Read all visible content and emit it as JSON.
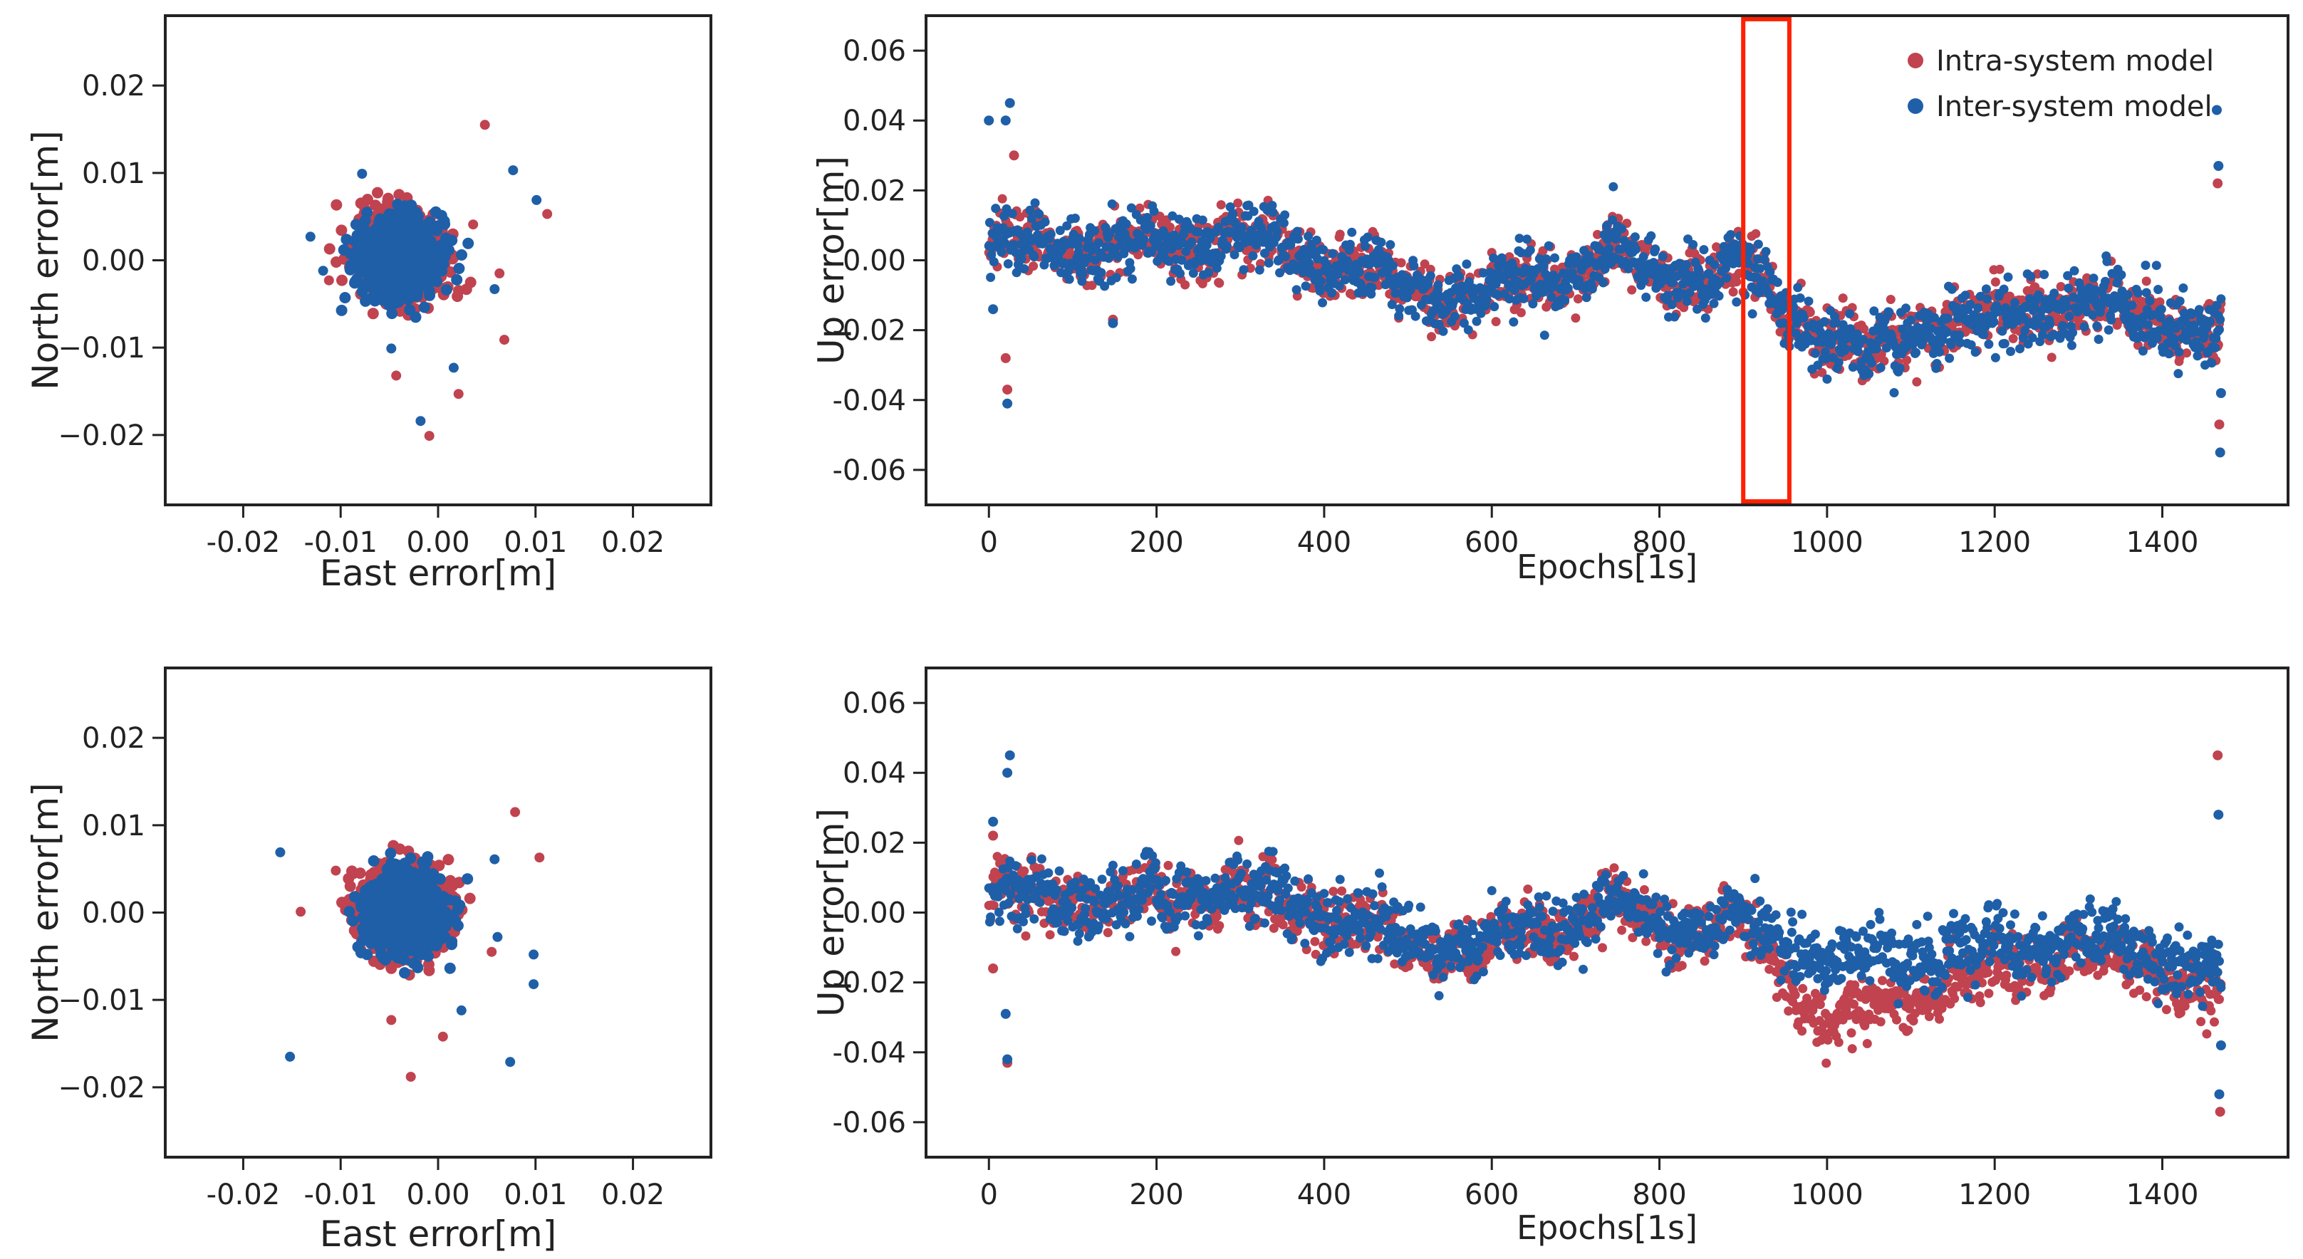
{
  "colors": {
    "intra": "#c0434f",
    "inter": "#1f5fa8",
    "highlight": "#ff2000",
    "axis": "#222222"
  },
  "legend": {
    "intra_label": "Intra-system model",
    "inter_label": "Inter-system model"
  },
  "chart_data": [
    {
      "id": "top-left",
      "type": "scatter",
      "title": "",
      "xlabel": "East error[m]",
      "ylabel": "North error[m]",
      "xlim": [
        -0.028,
        0.028
      ],
      "ylim": [
        -0.028,
        0.028
      ],
      "xticks": [
        -0.02,
        -0.01,
        0.0,
        0.01,
        0.02
      ],
      "xtick_labels": [
        "-0.02",
        "-0.01",
        "0.00",
        "0.01",
        "0.02"
      ],
      "yticks": [
        -0.02,
        -0.01,
        0.0,
        0.01,
        0.02
      ],
      "ytick_labels": [
        "−0.02",
        "−0.01",
        "0.00",
        "0.01",
        "0.02"
      ],
      "cluster": {
        "center": [
          -0.004,
          0.0005
        ],
        "spread": [
          0.0024,
          0.0026
        ],
        "count": 1400
      },
      "series": [
        {
          "name": "Intra-system model",
          "outliers": [
            [
              0.0048,
              0.0155
            ],
            [
              0.0112,
              0.0053
            ],
            [
              0.0068,
              -0.0091
            ],
            [
              0.0021,
              -0.0153
            ],
            [
              -0.0009,
              -0.0201
            ],
            [
              -0.0043,
              -0.0132
            ],
            [
              0.0063,
              -0.0015
            ],
            [
              -0.0112,
              -0.0023
            ],
            [
              0.0036,
              0.0041
            ]
          ]
        },
        {
          "name": "Inter-system model",
          "outliers": [
            [
              0.0077,
              0.0103
            ],
            [
              0.0101,
              0.0069
            ],
            [
              -0.0078,
              0.0099
            ],
            [
              -0.0131,
              0.0027
            ],
            [
              -0.0018,
              -0.0184
            ],
            [
              0.0016,
              -0.0123
            ],
            [
              -0.0048,
              -0.0101
            ],
            [
              0.0058,
              -0.0033
            ],
            [
              -0.0118,
              -0.0012
            ]
          ]
        }
      ]
    },
    {
      "id": "top-right",
      "type": "scatter",
      "title": "",
      "xlabel": "Epochs[1s]",
      "ylabel": "Up error[m]",
      "xlim": [
        -75,
        1550
      ],
      "ylim": [
        -0.07,
        0.07
      ],
      "xticks": [
        0,
        200,
        400,
        600,
        800,
        1000,
        1200,
        1400
      ],
      "xtick_labels": [
        "0",
        "200",
        "400",
        "600",
        "800",
        "1000",
        "1200",
        "1400"
      ],
      "yticks": [
        -0.06,
        -0.04,
        -0.02,
        0.0,
        0.02,
        0.04,
        0.06
      ],
      "ytick_labels": [
        "-0.06",
        "-0.04",
        "-0.02",
        "0.00",
        "0.02",
        "0.04",
        "0.06"
      ],
      "epochs": [
        0,
        1470
      ],
      "trend": [
        [
          0,
          0.005
        ],
        [
          100,
          0.004
        ],
        [
          200,
          0.004
        ],
        [
          300,
          0.006
        ],
        [
          400,
          0.0
        ],
        [
          500,
          -0.008
        ],
        [
          600,
          -0.01
        ],
        [
          700,
          -0.002
        ],
        [
          750,
          0.002
        ],
        [
          800,
          -0.005
        ],
        [
          900,
          -0.003
        ],
        [
          950,
          -0.013
        ],
        [
          1000,
          -0.022
        ],
        [
          1050,
          -0.028
        ],
        [
          1100,
          -0.02
        ],
        [
          1150,
          -0.018
        ],
        [
          1200,
          -0.017
        ],
        [
          1250,
          -0.014
        ],
        [
          1300,
          -0.012
        ],
        [
          1350,
          -0.015
        ],
        [
          1400,
          -0.016
        ],
        [
          1470,
          -0.022
        ]
      ],
      "series": [
        {
          "name": "Intra-system model",
          "offset": [
            [
              0,
              0.0
            ],
            [
              1470,
              0.0
            ]
          ],
          "noise": 0.0042
        },
        {
          "name": "Inter-system model",
          "offset": [
            [
              0,
              0.0
            ],
            [
              1470,
              0.0
            ]
          ],
          "noise": 0.0045
        }
      ],
      "spikes": [
        [
          0,
          0.04,
          "inter"
        ],
        [
          25,
          0.045,
          "inter"
        ],
        [
          20,
          0.04,
          "inter"
        ],
        [
          22,
          -0.041,
          "inter"
        ],
        [
          22,
          -0.037,
          "intra"
        ],
        [
          20,
          -0.028,
          "intra"
        ],
        [
          5,
          -0.014,
          "inter"
        ],
        [
          30,
          0.03,
          "intra"
        ],
        [
          1465,
          0.043,
          "inter"
        ],
        [
          1466,
          0.022,
          "intra"
        ],
        [
          1468,
          -0.047,
          "intra"
        ],
        [
          1469,
          -0.055,
          "inter"
        ],
        [
          1470,
          -0.038,
          "inter"
        ],
        [
          1467,
          0.027,
          "inter"
        ],
        [
          148,
          -0.017,
          "intra"
        ],
        [
          148,
          -0.018,
          "inter"
        ],
        [
          1400,
          -0.018,
          "intra"
        ]
      ],
      "highlight": {
        "x": [
          900,
          955
        ],
        "y": [
          -0.069,
          0.069
        ]
      },
      "legend_position": "top-right"
    },
    {
      "id": "bottom-left",
      "type": "scatter",
      "title": "",
      "xlabel": "East error[m]",
      "ylabel": "North error[m]",
      "xlim": [
        -0.028,
        0.028
      ],
      "ylim": [
        -0.028,
        0.028
      ],
      "xticks": [
        -0.02,
        -0.01,
        0.0,
        0.01,
        0.02
      ],
      "xtick_labels": [
        "-0.02",
        "-0.01",
        "0.00",
        "0.01",
        "0.02"
      ],
      "yticks": [
        -0.02,
        -0.01,
        0.0,
        0.01,
        0.02
      ],
      "ytick_labels": [
        "−0.02",
        "−0.01",
        "0.00",
        "0.01",
        "0.02"
      ],
      "cluster": {
        "center": [
          -0.0035,
          0.0
        ],
        "spread": [
          0.0024,
          0.0026
        ],
        "count": 1400
      },
      "series": [
        {
          "name": "Intra-system model",
          "outliers": [
            [
              0.0079,
              0.0115
            ],
            [
              0.0104,
              0.0063
            ],
            [
              -0.0141,
              0.0001
            ],
            [
              -0.0028,
              -0.0188
            ],
            [
              -0.0048,
              -0.0123
            ],
            [
              0.0005,
              -0.0142
            ],
            [
              0.0055,
              -0.0045
            ],
            [
              -0.0105,
              0.0048
            ]
          ]
        },
        {
          "name": "Inter-system model",
          "outliers": [
            [
              -0.0162,
              0.0069
            ],
            [
              -0.0152,
              -0.0165
            ],
            [
              0.0074,
              -0.0171
            ],
            [
              0.0098,
              -0.0082
            ],
            [
              0.0098,
              -0.0048
            ],
            [
              0.0058,
              0.0061
            ],
            [
              0.0024,
              -0.0112
            ],
            [
              0.0061,
              -0.0028
            ]
          ]
        }
      ]
    },
    {
      "id": "bottom-right",
      "type": "scatter",
      "title": "",
      "xlabel": "Epochs[1s]",
      "ylabel": "Up error[m]",
      "xlim": [
        -75,
        1550
      ],
      "ylim": [
        -0.07,
        0.07
      ],
      "xticks": [
        0,
        200,
        400,
        600,
        800,
        1000,
        1200,
        1400
      ],
      "xtick_labels": [
        "0",
        "200",
        "400",
        "600",
        "800",
        "1000",
        "1200",
        "1400"
      ],
      "yticks": [
        -0.06,
        -0.04,
        -0.02,
        0.0,
        0.02,
        0.04,
        0.06
      ],
      "ytick_labels": [
        "-0.06",
        "-0.04",
        "-0.02",
        "0.00",
        "0.02",
        "0.04",
        "0.06"
      ],
      "epochs": [
        0,
        1470
      ],
      "trend": [
        [
          0,
          0.005
        ],
        [
          100,
          0.004
        ],
        [
          200,
          0.004
        ],
        [
          300,
          0.006
        ],
        [
          400,
          0.0
        ],
        [
          500,
          -0.008
        ],
        [
          600,
          -0.01
        ],
        [
          700,
          -0.002
        ],
        [
          750,
          0.002
        ],
        [
          800,
          -0.005
        ],
        [
          900,
          -0.003
        ],
        [
          950,
          -0.012
        ],
        [
          1000,
          -0.016
        ],
        [
          1050,
          -0.016
        ],
        [
          1100,
          -0.016
        ],
        [
          1150,
          -0.014
        ],
        [
          1200,
          -0.013
        ],
        [
          1250,
          -0.011
        ],
        [
          1300,
          -0.009
        ],
        [
          1350,
          -0.012
        ],
        [
          1400,
          -0.013
        ],
        [
          1470,
          -0.02
        ]
      ],
      "series": [
        {
          "name": "Intra-system model",
          "offset": [
            [
              0,
              0.0
            ],
            [
              900,
              0.0
            ],
            [
              960,
              -0.008
            ],
            [
              1000,
              -0.015
            ],
            [
              1100,
              -0.009
            ],
            [
              1200,
              -0.004
            ],
            [
              1300,
              -0.002
            ],
            [
              1470,
              -0.003
            ]
          ],
          "noise": 0.0042
        },
        {
          "name": "Inter-system model",
          "offset": [
            [
              0,
              0.0
            ],
            [
              900,
              0.0
            ],
            [
              960,
              0.003
            ],
            [
              1000,
              0.003
            ],
            [
              1470,
              0.002
            ]
          ],
          "noise": 0.0045
        }
      ],
      "spikes": [
        [
          25,
          0.045,
          "inter"
        ],
        [
          22,
          0.04,
          "inter"
        ],
        [
          5,
          0.026,
          "inter"
        ],
        [
          5,
          0.022,
          "intra"
        ],
        [
          22,
          -0.043,
          "intra"
        ],
        [
          22,
          -0.042,
          "inter"
        ],
        [
          20,
          -0.029,
          "inter"
        ],
        [
          5,
          -0.016,
          "intra"
        ],
        [
          1466,
          0.045,
          "intra"
        ],
        [
          1467,
          0.028,
          "inter"
        ],
        [
          1468,
          -0.052,
          "inter"
        ],
        [
          1469,
          -0.057,
          "intra"
        ],
        [
          1470,
          -0.038,
          "inter"
        ],
        [
          1400,
          -0.022,
          "inter"
        ]
      ],
      "legend_position": "none"
    }
  ]
}
